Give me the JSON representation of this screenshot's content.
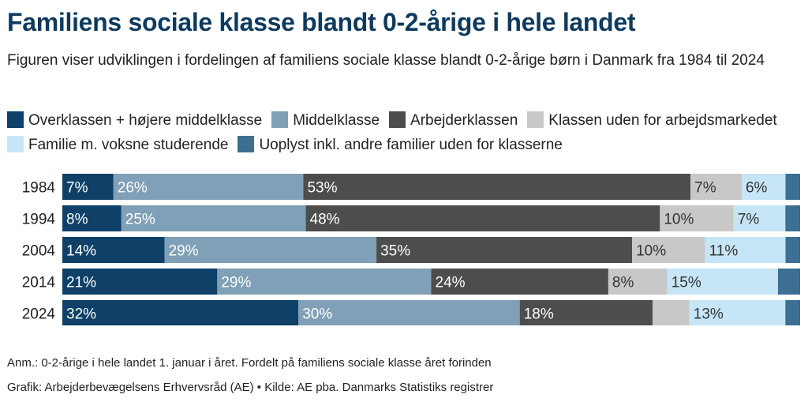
{
  "title": "Familiens sociale klasse blandt 0-2-årige i hele landet",
  "subtitle": "Figuren viser udviklingen i fordelingen af familiens sociale klasse blandt 0-2-årige børn i Danmark fra 1984 til 2024",
  "note": "Anm.: 0-2-årige i hele landet 1. januar i året. Fordelt på familiens sociale klasse året forinden",
  "source": "Grafik: Arbejderbevægelsens Erhvervsråd (AE) • Kilde: AE pba. Danmarks Statistiks registrer",
  "legend": [
    {
      "label": "Overklassen + højere middelklasse",
      "color": "#0e4068"
    },
    {
      "label": "Middelklasse",
      "color": "#7fa0b6"
    },
    {
      "label": "Arbejderklassen",
      "color": "#4d4d4d"
    },
    {
      "label": "Klassen uden for arbejdsmarkedet",
      "color": "#c8c8c8"
    },
    {
      "label": "Familie m. voksne studerende",
      "color": "#c6e6f7"
    },
    {
      "label": "Uoplyst inkl. andre familier uden for klasserne",
      "color": "#3c6f92"
    }
  ],
  "chart_data": {
    "type": "bar",
    "orientation": "horizontal",
    "stacked": true,
    "unit": "%",
    "categories": [
      "1984",
      "1994",
      "2004",
      "2014",
      "2024"
    ],
    "series": [
      {
        "name": "Overklassen + højere middelklasse",
        "color": "#0e4068",
        "text_color": "#ffffff",
        "values": [
          7,
          8,
          14,
          21,
          32
        ],
        "labels": [
          "7%",
          "8%",
          "14%",
          "21%",
          "32%"
        ]
      },
      {
        "name": "Middelklasse",
        "color": "#7fa0b6",
        "text_color": "#ffffff",
        "values": [
          26,
          25,
          29,
          29,
          30
        ],
        "labels": [
          "26%",
          "25%",
          "29%",
          "29%",
          "30%"
        ]
      },
      {
        "name": "Arbejderklassen",
        "color": "#4d4d4d",
        "text_color": "#ffffff",
        "values": [
          53,
          48,
          35,
          24,
          18
        ],
        "labels": [
          "53%",
          "48%",
          "35%",
          "24%",
          "18%"
        ]
      },
      {
        "name": "Klassen uden for arbejdsmarkedet",
        "color": "#c8c8c8",
        "text_color": "#333333",
        "values": [
          7,
          10,
          10,
          8,
          5
        ],
        "labels": [
          "7%",
          "10%",
          "10%",
          "8%",
          ""
        ]
      },
      {
        "name": "Familie m. voksne studerende",
        "color": "#c6e6f7",
        "text_color": "#333333",
        "values": [
          6,
          7,
          11,
          15,
          13
        ],
        "labels": [
          "6%",
          "7%",
          "11%",
          "15%",
          "13%"
        ]
      },
      {
        "name": "Uoplyst inkl. andre familier uden for klasserne",
        "color": "#3c6f92",
        "text_color": "#ffffff",
        "values": [
          2,
          2,
          2,
          3,
          2
        ],
        "labels": [
          "",
          "",
          "",
          "",
          ""
        ]
      }
    ],
    "xlim": [
      0,
      100
    ],
    "grid": false
  }
}
